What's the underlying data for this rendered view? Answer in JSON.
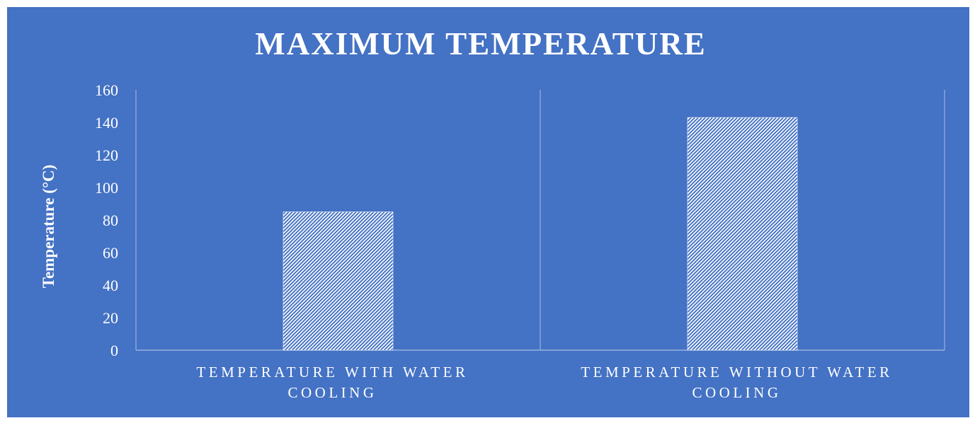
{
  "chart_data": {
    "type": "bar",
    "title": "MAXIMUM TEMPERATURE",
    "xlabel": "",
    "ylabel": "Temperature (°C)",
    "categories": [
      [
        "TEMPERATURE WITH WATER",
        "COOLING"
      ],
      [
        "TEMPERATURE WITHOUT WATER",
        "COOLING"
      ]
    ],
    "values": [
      85,
      143
    ],
    "ylim": [
      0,
      160
    ],
    "yticks": [
      0,
      20,
      40,
      60,
      80,
      100,
      120,
      140,
      160
    ],
    "grid": false,
    "legend": "none",
    "bar_fill": "hatched",
    "colors": {
      "background": "#4472C4",
      "bar": "#FFFFFF",
      "text": "#FFFFFF",
      "axis": "#A9BFE3"
    }
  }
}
